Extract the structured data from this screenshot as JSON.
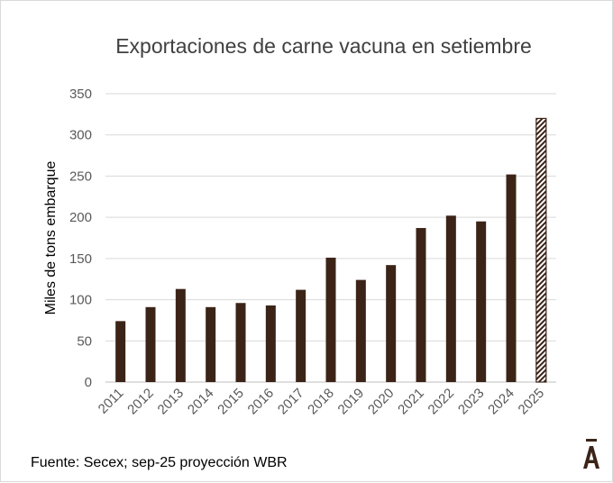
{
  "chart_data": {
    "type": "bar",
    "title": "Exportaciones de carne vacuna en setiembre",
    "ylabel": "Miles de tons embarque",
    "xlabel": "",
    "ylim": [
      0,
      350
    ],
    "yticks": [
      0,
      50,
      100,
      150,
      200,
      250,
      300,
      350
    ],
    "grid": true,
    "categories": [
      "2011",
      "2012",
      "2013",
      "2014",
      "2015",
      "2016",
      "2017",
      "2018",
      "2019",
      "2020",
      "2021",
      "2022",
      "2023",
      "2024",
      "2025"
    ],
    "values": [
      74,
      91,
      113,
      91,
      96,
      93,
      112,
      151,
      124,
      142,
      187,
      202,
      195,
      252,
      320
    ],
    "bar_color": "#3b2417",
    "projected_categories": [
      "2025"
    ]
  },
  "footer": {
    "source": "Fuente: Secex; sep-25 proyección WBR"
  },
  "logo": {
    "text": "Ā",
    "color": "#3b2417"
  }
}
